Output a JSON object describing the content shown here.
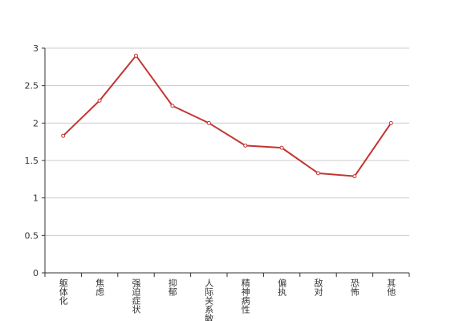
{
  "chart_data": {
    "type": "line",
    "categories": [
      "躯体化",
      "焦虑",
      "强迫症状",
      "抑郁",
      "人际关系敏感",
      "精神病性",
      "偏执",
      "敌对",
      "恐怖",
      "其他"
    ],
    "series": [
      {
        "color": "#c23531",
        "values": [
          1.83,
          2.3,
          2.9,
          2.23,
          2.0,
          1.7,
          1.67,
          1.33,
          1.29,
          2.0
        ]
      }
    ],
    "ylim": [
      0,
      3
    ],
    "yticks": [
      0,
      0.5,
      1,
      1.5,
      2,
      2.5,
      3
    ],
    "grid": true
  }
}
